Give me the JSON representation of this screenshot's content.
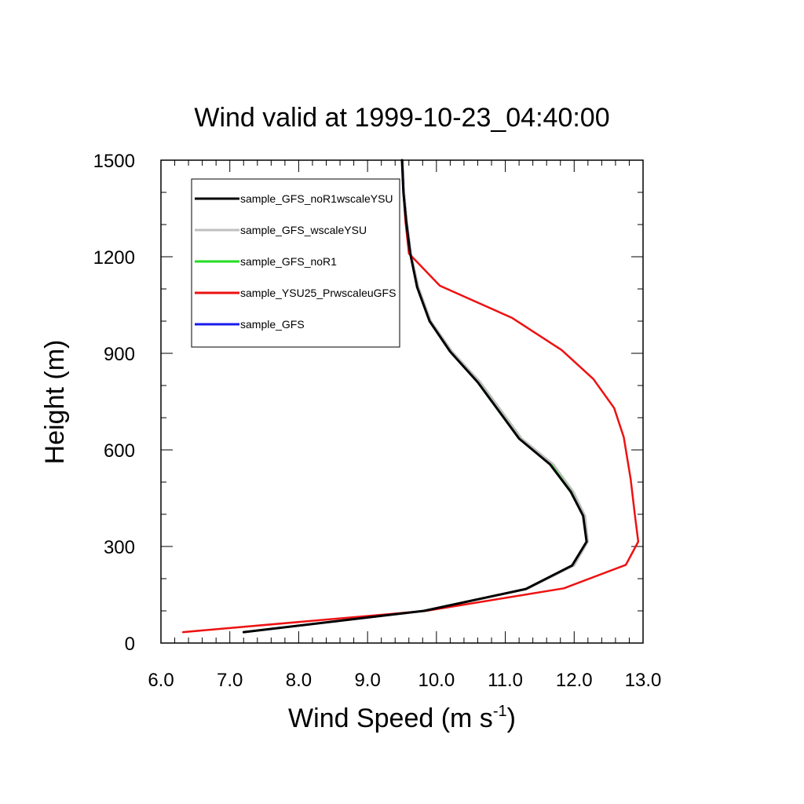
{
  "chart_data": {
    "type": "line",
    "title": "Wind valid at 1999-10-23_04:40:00",
    "xlabel": "Wind Speed (m s",
    "xlabel_sup": "-1",
    "xlabel_end": ")",
    "ylabel": "Height (m)",
    "xlim": [
      6.0,
      13.0
    ],
    "ylim": [
      0,
      1500
    ],
    "x_ticks": [
      6.0,
      7.0,
      8.0,
      9.0,
      10.0,
      11.0,
      12.0,
      13.0
    ],
    "x_tick_labels": [
      "6.0",
      "7.0",
      "8.0",
      "9.0",
      "10.0",
      "11.0",
      "12.0",
      "13.0"
    ],
    "y_ticks": [
      0,
      300,
      600,
      900,
      1200,
      1500
    ],
    "y_tick_labels": [
      "0",
      "300",
      "600",
      "900",
      "1200",
      "1500"
    ],
    "grid": false,
    "legend_position": "top-left",
    "series": [
      {
        "name": "sample_GFS_noR1wscaleYSU",
        "color": "#000000",
        "x": [
          7.2,
          9.82,
          11.3,
          11.97,
          12.18,
          12.13,
          11.95,
          11.65,
          11.2,
          10.6,
          10.2,
          9.9,
          9.72,
          9.62,
          9.56,
          9.52,
          9.5
        ],
        "y": [
          34,
          100,
          168,
          241,
          315,
          395,
          470,
          555,
          635,
          810,
          905,
          1000,
          1105,
          1210,
          1310,
          1400,
          1500
        ]
      },
      {
        "name": "sample_GFS_wscaleYSU",
        "color": "#bfbfbf",
        "x": [
          7.2,
          9.82,
          11.32,
          12.0,
          12.2,
          12.16,
          11.99,
          11.7,
          11.24,
          10.64,
          10.23,
          9.92,
          9.74,
          9.63,
          9.57,
          9.53,
          9.51
        ],
        "y": [
          34,
          100,
          168,
          241,
          315,
          395,
          470,
          555,
          635,
          810,
          905,
          1000,
          1105,
          1210,
          1310,
          1400,
          1500
        ]
      },
      {
        "name": "sample_GFS_noR1",
        "color": "#22dd22",
        "x": [
          7.2,
          9.82,
          11.31,
          11.99,
          12.19,
          12.15,
          11.98,
          11.68,
          11.23,
          10.63,
          10.22,
          9.91,
          9.73,
          9.62,
          9.56,
          9.52,
          9.5
        ],
        "y": [
          34,
          100,
          168,
          241,
          315,
          395,
          470,
          555,
          635,
          810,
          905,
          1000,
          1105,
          1210,
          1310,
          1400,
          1500
        ]
      },
      {
        "name": "sample_YSU25_PrwscaleuGFS",
        "color": "#ee1111",
        "x": [
          6.32,
          9.85,
          11.85,
          12.75,
          12.93,
          12.88,
          12.82,
          12.72,
          12.58,
          12.28,
          11.82,
          11.1,
          10.05,
          9.6,
          9.55,
          9.52,
          9.5
        ],
        "y": [
          34,
          100,
          170,
          243,
          315,
          400,
          510,
          640,
          730,
          820,
          910,
          1010,
          1110,
          1210,
          1310,
          1400,
          1500
        ]
      },
      {
        "name": "sample_GFS",
        "color": "#1a1aee",
        "x": [
          7.2,
          9.82,
          11.31,
          11.99,
          12.19,
          12.15,
          11.98,
          11.69,
          11.23,
          10.63,
          10.22,
          9.91,
          9.73,
          9.63,
          9.57,
          9.53,
          9.51
        ],
        "y": [
          34,
          100,
          168,
          241,
          315,
          395,
          470,
          555,
          635,
          810,
          905,
          1000,
          1105,
          1210,
          1310,
          1400,
          1500
        ]
      }
    ]
  }
}
